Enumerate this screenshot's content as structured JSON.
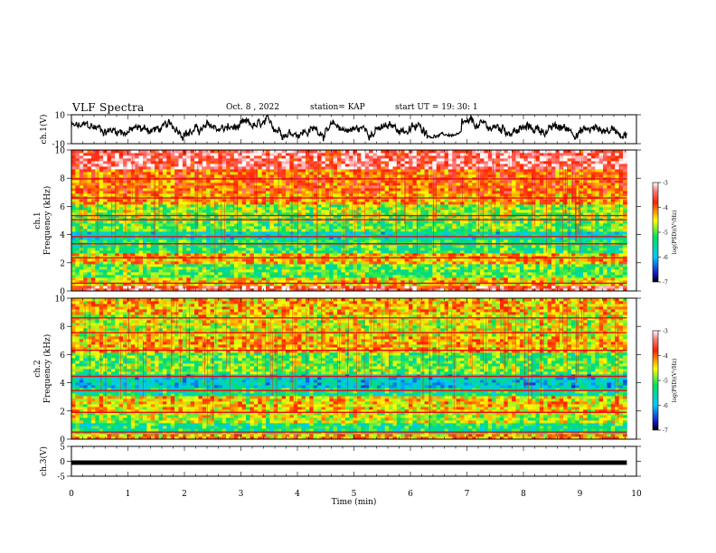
{
  "header": {
    "title": "VLF Spectra",
    "date": "Oct. 8 , 2022",
    "station": "station= KAP",
    "start": "start UT = 19: 30: 1"
  },
  "chart_data": [
    {
      "type": "line",
      "panel": "ch1-waveform",
      "ylabel": "ch.1(V)",
      "ylim": [
        -10,
        10
      ],
      "yticks": [
        "10",
        "-10"
      ],
      "xlim": [
        0,
        10
      ],
      "series_color": "#000000",
      "trace_note_range_min": [
        0,
        9.83
      ]
    },
    {
      "type": "heatmap",
      "panel": "ch1-spectrogram",
      "ylabel": "ch.1\nFrequency (kHz)",
      "ylabel_lines": [
        "ch.1",
        "Frequency (kHz)"
      ],
      "ylim": [
        0,
        10
      ],
      "yticks": [
        "0",
        "2",
        "4",
        "6",
        "8",
        "10"
      ],
      "xlim": [
        0,
        10
      ],
      "data_end_min": 9.83,
      "bands_khz": [
        {
          "from": 0.0,
          "to": 0.4,
          "level": -3.5
        },
        {
          "from": 0.4,
          "to": 1.0,
          "level": -4.4
        },
        {
          "from": 1.0,
          "to": 2.0,
          "level": -5.0
        },
        {
          "from": 2.0,
          "to": 2.6,
          "level": -4.3
        },
        {
          "from": 2.6,
          "to": 3.6,
          "level": -5.2
        },
        {
          "from": 3.6,
          "to": 4.3,
          "level": -5.6
        },
        {
          "from": 4.3,
          "to": 5.2,
          "level": -5.0
        },
        {
          "from": 5.2,
          "to": 6.2,
          "level": -4.8
        },
        {
          "from": 6.2,
          "to": 7.0,
          "level": -4.2
        },
        {
          "from": 7.0,
          "to": 8.6,
          "level": -4.0
        },
        {
          "from": 8.6,
          "to": 10.0,
          "level": -3.4
        }
      ],
      "lines_khz": [
        0.55,
        2.35,
        3.35,
        3.85,
        5.05,
        5.35,
        6.6,
        7.95
      ],
      "colorbar": {
        "label": "log(PSD)(V²/Hz)",
        "range": [
          -7,
          -3
        ],
        "ticks": [
          "-3",
          "-4",
          "-5",
          "-6",
          "-7"
        ]
      }
    },
    {
      "type": "heatmap",
      "panel": "ch2-spectrogram",
      "ylabel": "ch.2\nFrequency (kHz)",
      "ylabel_lines": [
        "ch.2",
        "Frequency (kHz)"
      ],
      "ylim": [
        0,
        10
      ],
      "yticks": [
        "0",
        "2",
        "4",
        "6",
        "8",
        "10"
      ],
      "xlim": [
        0,
        10
      ],
      "data_end_min": 9.83,
      "bands_khz": [
        {
          "from": 0.0,
          "to": 0.4,
          "level": -4.2
        },
        {
          "from": 0.4,
          "to": 1.2,
          "level": -5.3
        },
        {
          "from": 1.2,
          "to": 2.0,
          "level": -4.7
        },
        {
          "from": 2.0,
          "to": 3.0,
          "level": -4.4
        },
        {
          "from": 3.0,
          "to": 3.6,
          "level": -5.4
        },
        {
          "from": 3.6,
          "to": 4.6,
          "level": -5.8
        },
        {
          "from": 4.6,
          "to": 5.2,
          "level": -4.9
        },
        {
          "from": 5.2,
          "to": 6.2,
          "level": -5.0
        },
        {
          "from": 6.2,
          "to": 7.4,
          "level": -4.3
        },
        {
          "from": 7.4,
          "to": 8.8,
          "level": -4.6
        },
        {
          "from": 8.8,
          "to": 10.0,
          "level": -4.3
        }
      ],
      "lines_khz": [
        0.5,
        1.9,
        3.45,
        4.45,
        6.3,
        7.55,
        8.6
      ],
      "colorbar": {
        "label": "log(PSD)(V²/Hz)",
        "range": [
          -7,
          -3
        ],
        "ticks": [
          "-3",
          "-4",
          "-5",
          "-6",
          "-7"
        ]
      }
    },
    {
      "type": "line",
      "panel": "ch3-waveform",
      "ylabel": "ch.3(V)",
      "ylim": [
        -5,
        5
      ],
      "yticks": [
        "5",
        "0",
        "-5"
      ],
      "xlim": [
        0,
        10
      ],
      "xlabel": "Time (min)",
      "xticks": [
        "0",
        "1",
        "2",
        "3",
        "4",
        "5",
        "6",
        "7",
        "8",
        "9",
        "10"
      ],
      "band_range_v": [
        -1.2,
        0.3
      ],
      "series_color": "#000000"
    }
  ]
}
